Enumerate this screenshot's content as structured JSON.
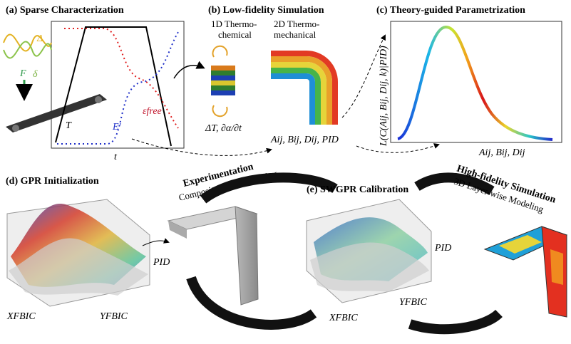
{
  "panel_a": {
    "title": "(a) Sparse Characterization",
    "delta_big": "Δ",
    "delta_small": "δ",
    "force": "F",
    "temperature": "T",
    "modulus": "E'",
    "strain": "εfree",
    "time": "t"
  },
  "panel_b": {
    "title": "(b) Low-fidelity Simulation",
    "model_1d": [
      "1D Thermo-",
      "chemical"
    ],
    "model_2d": [
      "2D Thermo-",
      "mechanical"
    ],
    "inputs": "ΔT, ∂α/∂t",
    "outputs": "Aij, Bij, Dij, PID"
  },
  "panel_c": {
    "title": "(c) Theory-guided Parametrization",
    "y_label": "L(C(Aij, Bij, Dij, k)|PID)",
    "x_label": "Aij, Bij, Dij"
  },
  "panel_d": {
    "title": "(d) GPR Initialization",
    "z_label": "PID",
    "x_label": "XFBIC",
    "y_label": "YFBIC"
  },
  "experimentation": {
    "title": "Experimentation",
    "subtitle": "Composites Manufacturing"
  },
  "panel_e": {
    "title": "(e) SWGPR Calibration",
    "z_label": "PID",
    "x_label": "XFBIC",
    "y_label": "YFBIC"
  },
  "high_fidelity": {
    "title": "High-fidelity Simulation",
    "subtitle": "3D Layer-wise Modeling"
  }
}
